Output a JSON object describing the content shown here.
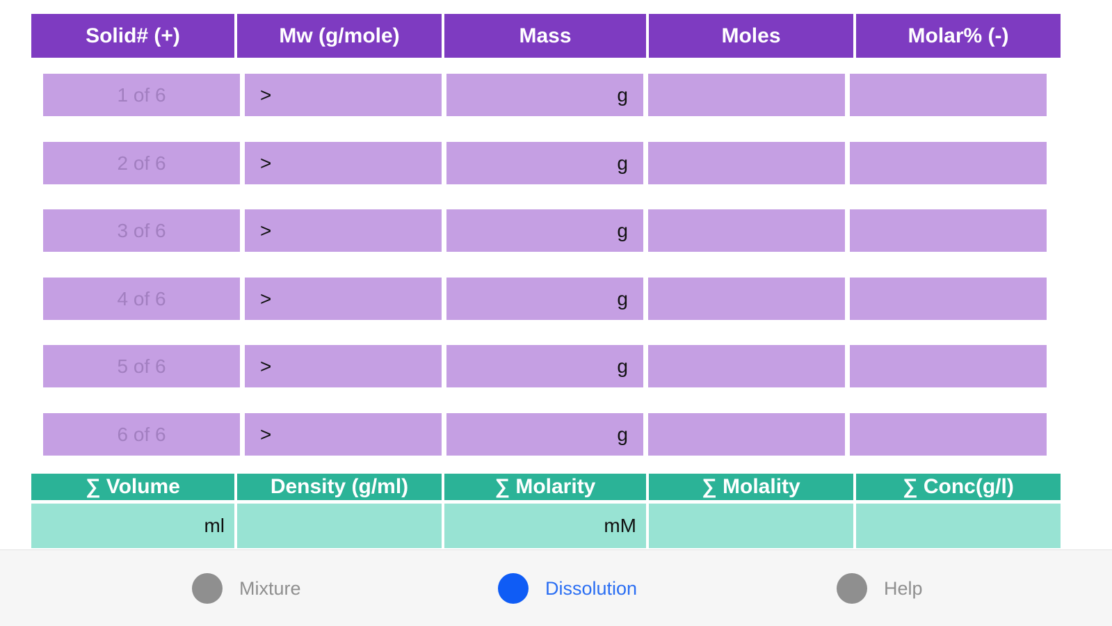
{
  "solids_table": {
    "columns": [
      "Solid# (+)",
      "Mw (g/mole)",
      "Mass",
      "Moles",
      "Molar% (-)"
    ],
    "rows": [
      {
        "solid": "1 of 6",
        "mw": ">",
        "mass_unit": "g",
        "moles": "",
        "molar": ""
      },
      {
        "solid": "2 of 6",
        "mw": ">",
        "mass_unit": "g",
        "moles": "",
        "molar": ""
      },
      {
        "solid": "3 of 6",
        "mw": ">",
        "mass_unit": "g",
        "moles": "",
        "molar": ""
      },
      {
        "solid": "4 of 6",
        "mw": ">",
        "mass_unit": "g",
        "moles": "",
        "molar": ""
      },
      {
        "solid": "5 of 6",
        "mw": ">",
        "mass_unit": "g",
        "moles": "",
        "molar": ""
      },
      {
        "solid": "6 of 6",
        "mw": ">",
        "mass_unit": "g",
        "moles": "",
        "molar": ""
      }
    ]
  },
  "summary": {
    "columns": [
      "∑ Volume",
      "Density (g/ml)",
      "∑ Molarity",
      "∑ Molality",
      "∑ Conc(g/l)"
    ],
    "values": [
      "ml",
      "",
      "mM",
      "",
      ""
    ]
  },
  "tabbar": {
    "tabs": [
      {
        "label": "Mixture",
        "icon": "circle-icon",
        "active": false
      },
      {
        "label": "Dissolution",
        "icon": "circle-icon",
        "active": true
      },
      {
        "label": "Help",
        "icon": "circle-icon",
        "active": false
      }
    ]
  },
  "colors": {
    "header_purple": "#7e3bc1",
    "cell_purple": "#c59fe3",
    "header_teal": "#2bb397",
    "cell_teal": "#98e3d3",
    "tab_active": "#0f5cf5",
    "tab_inactive": "#8f8f8f"
  }
}
